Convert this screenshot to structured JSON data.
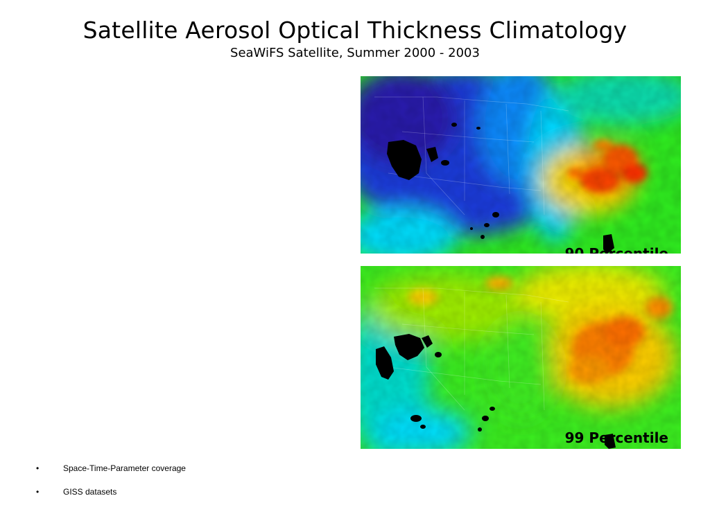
{
  "slide": {
    "title": "Satellite Aerosol Optical Thickness Climatology",
    "subtitle": "SeaWiFS Satellite, Summer 2000 - 2003"
  },
  "maps": [
    {
      "label": "90 Percentile",
      "palette": "blue-dominant west, orange/red hotspots east"
    },
    {
      "label": "99 Percentile",
      "palette": "green-dominant, widespread yellow-orange east"
    }
  ],
  "colors": {
    "low": "#2020d0",
    "mid_low": "#00c8ff",
    "mid": "#30f020",
    "high": "#ffe000",
    "very_high": "#ff6000",
    "no_data": "#000000"
  },
  "bullets": [
    {
      "marker": "•",
      "text": "Space-Time-Parameter coverage"
    },
    {
      "marker": "•",
      "text": "GISS datasets"
    }
  ]
}
